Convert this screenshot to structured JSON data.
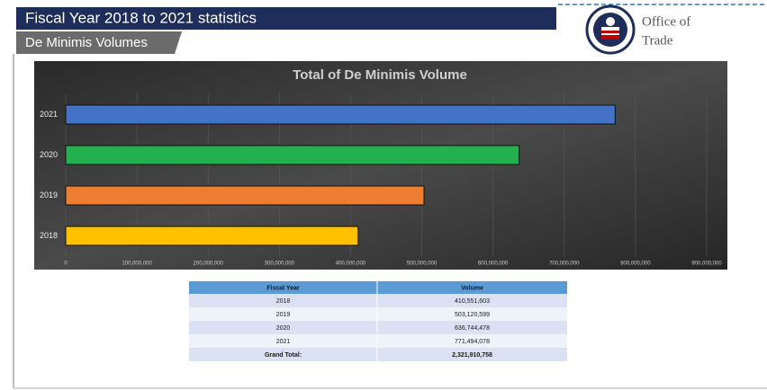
{
  "header": {
    "title": "Fiscal Year 2018 to 2021 statistics",
    "subtitle": "De Minimis Volumes",
    "logo_text": [
      "Office of",
      "Trade"
    ]
  },
  "chart_data": {
    "type": "hbar",
    "title": "Total of De Minimis Volume",
    "categories": [
      "2018",
      "2019",
      "2020",
      "2021"
    ],
    "values": [
      410551603,
      503120599,
      636744478,
      771494078
    ],
    "colors": [
      "#ffc000",
      "#ed7d31",
      "#22b14c",
      "#4472c4"
    ],
    "xlim": [
      0,
      900000000
    ],
    "xticks": [
      0,
      {
        "value": 100000000,
        "label": "100,000,000"
      },
      {
        "value": 200000000,
        "label": "200,000,000"
      },
      {
        "value": 300000000,
        "label": "300,000,000"
      },
      {
        "value": 400000000,
        "label": "400,000,000"
      },
      {
        "value": 500000000,
        "label": "500,000,000"
      },
      {
        "value": 600000000,
        "label": "600,000,000"
      },
      {
        "value": 700000000,
        "label": "700,000,000"
      },
      {
        "value": 800000000,
        "label": "800,000,000"
      },
      {
        "value": 900000000,
        "label": "900,000,000"
      }
    ],
    "grid": true
  },
  "table": {
    "columns": [
      "Fiscal Year",
      "Volume"
    ],
    "rows": [
      [
        "2018",
        "410,551,603"
      ],
      [
        "2019",
        "503,120,599"
      ],
      [
        "2020",
        "636,744,478"
      ],
      [
        "2021",
        "771,494,078"
      ],
      [
        "Grand Total:",
        "2,321,910,758"
      ]
    ]
  }
}
